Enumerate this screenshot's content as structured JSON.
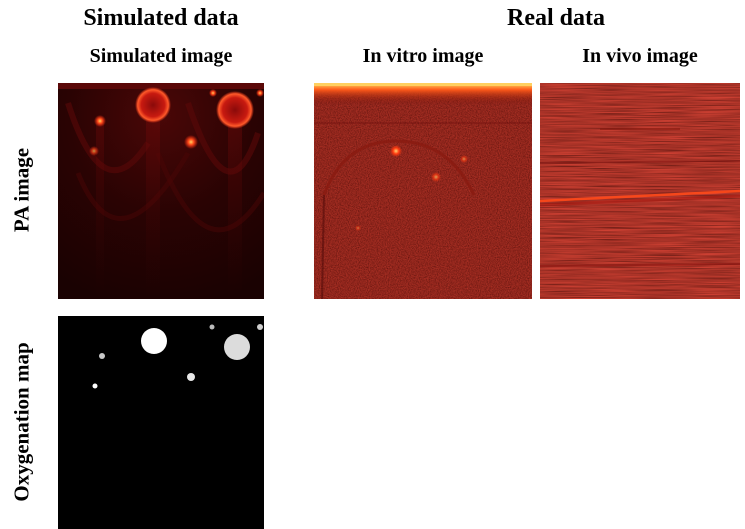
{
  "headers": {
    "simulated_group": "Simulated data",
    "real_group": "Real data",
    "simulated_image": "Simulated image",
    "in_vitro_image": "In vitro image",
    "in_vivo_image": "In vivo image"
  },
  "rows": {
    "pa_image": "PA image",
    "oxygenation_map": "Oxygenation map"
  },
  "colors": {
    "pa_background": "#2a0303",
    "pa_hot": "#ff3a1a",
    "map_background": "#000000",
    "map_vessel": "#e6e6e6"
  }
}
